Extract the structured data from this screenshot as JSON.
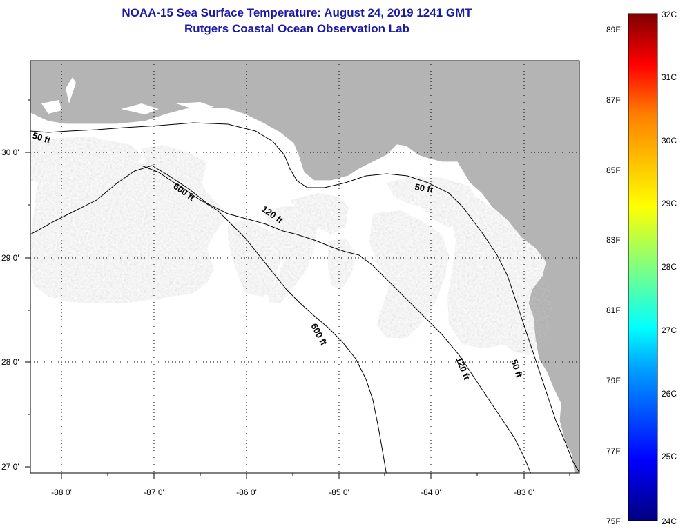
{
  "title": {
    "line1": "NOAA-15 Sea Surface Temperature:  August 24, 2019 1241 GMT",
    "line2": "Rutgers Coastal Ocean Observation Lab"
  },
  "map": {
    "lon_ticks": [
      "-88 0'",
      "-87 0'",
      "-86 0'",
      "-85 0'",
      "-84 0'",
      "-83 0'"
    ],
    "lat_ticks": [
      "30 0'",
      "29 0'",
      "28 0'",
      "27 0'"
    ],
    "contours": {
      "c50w": "50 ft",
      "c600a": "600 ft",
      "c120a": "120 ft",
      "c600b": "600 ft",
      "c50e": "50 ft",
      "c120b": "120 ft",
      "c50s": "50 ft"
    },
    "colors": {
      "land": "#b4b4b4",
      "water_no_data": "#ffffff"
    }
  },
  "colorbar": {
    "fahrenheit": [
      "89F",
      "87F",
      "85F",
      "83F",
      "81F",
      "79F",
      "77F",
      "75F"
    ],
    "celsius": [
      "32C",
      "31C",
      "30C",
      "29C",
      "28C",
      "27C",
      "26C",
      "25C",
      "24C"
    ],
    "colormap": [
      "#000080",
      "#0000ff",
      "#00a0ff",
      "#00ffff",
      "#80ff80",
      "#ffff00",
      "#ff8000",
      "#ff0000",
      "#800000"
    ]
  }
}
